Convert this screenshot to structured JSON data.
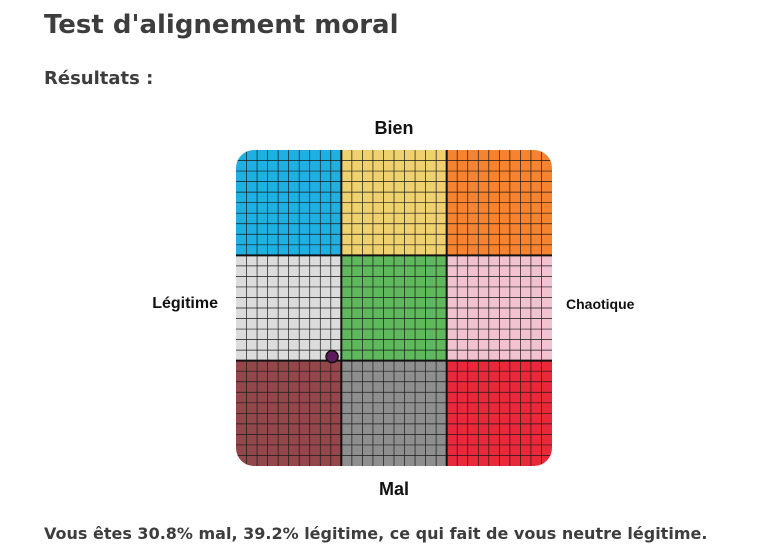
{
  "page": {
    "title": "Test d'alignement moral",
    "results_heading": "Résultats :",
    "result_sentence": "Vous êtes 30.8% mal, 39.2% légitime, ce qui fait de vous neutre légitime."
  },
  "chart_data": {
    "type": "scatter",
    "labels": {
      "top": "Bien",
      "bottom": "Mal",
      "left": "Légitime",
      "right": "Chaotique"
    },
    "grid": true,
    "cells": [
      {
        "row": 0,
        "col": 0,
        "color": "#1fb0e3"
      },
      {
        "row": 0,
        "col": 1,
        "color": "#efd26f"
      },
      {
        "row": 0,
        "col": 2,
        "color": "#f6832f"
      },
      {
        "row": 1,
        "col": 0,
        "color": "#dcdcdc"
      },
      {
        "row": 1,
        "col": 1,
        "color": "#5fb85c"
      },
      {
        "row": 1,
        "col": 2,
        "color": "#f2c2cf"
      },
      {
        "row": 2,
        "col": 0,
        "color": "#93474a"
      },
      {
        "row": 2,
        "col": 1,
        "color": "#8e8e8e"
      },
      {
        "row": 2,
        "col": 2,
        "color": "#e9283a"
      }
    ],
    "result": {
      "evil_percent": 30.8,
      "lawful_percent": 39.2,
      "marker_color": "#5e1a5e"
    }
  }
}
